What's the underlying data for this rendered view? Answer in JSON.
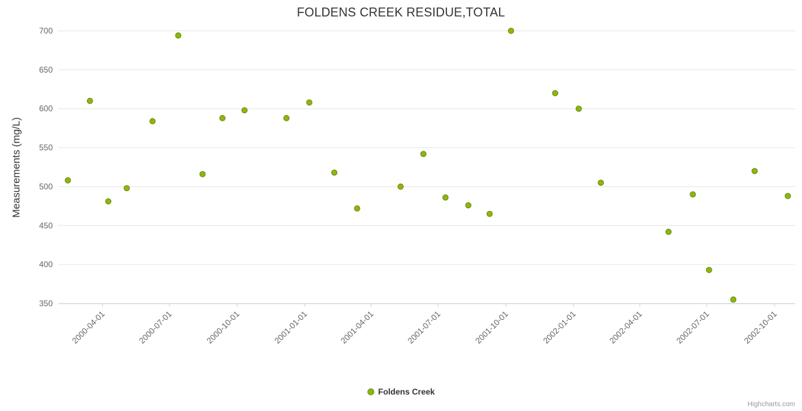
{
  "credits": "Highcharts.com",
  "legend": {
    "label": "Foldens Creek"
  },
  "chart_data": {
    "type": "scatter",
    "title": "FOLDENS CREEK RESIDUE,TOTAL",
    "xlabel": "",
    "ylabel": "Measurements (mg/L)",
    "ylim": [
      350,
      700
    ],
    "y_ticks": [
      350,
      400,
      450,
      500,
      550,
      600,
      650,
      700
    ],
    "x_ticks": [
      "2000-04-01",
      "2000-07-01",
      "2000-10-01",
      "2001-01-01",
      "2001-04-01",
      "2001-07-01",
      "2001-10-01",
      "2002-01-01",
      "2002-04-01",
      "2002-07-01",
      "2002-10-01"
    ],
    "x_range": [
      "2000-02-01",
      "2002-10-29"
    ],
    "grid": "horizontal",
    "legend_position": "bottom-center",
    "colors": {
      "marker_fill": "#8fb512",
      "marker_stroke": "#6d8c0b",
      "gridline": "#e6e6e6",
      "axis_line": "#ccd6eb",
      "tick_label": "#666666",
      "title": "#333333"
    },
    "series": [
      {
        "name": "Foldens Creek",
        "color": "#8fb512",
        "border_color": "#6d8c0b",
        "points": [
          [
            "2000-02-14",
            508
          ],
          [
            "2000-03-15",
            610
          ],
          [
            "2000-04-09",
            481
          ],
          [
            "2000-05-04",
            498
          ],
          [
            "2000-06-08",
            584
          ],
          [
            "2000-07-13",
            694
          ],
          [
            "2000-08-15",
            516
          ],
          [
            "2000-09-11",
            588
          ],
          [
            "2000-10-11",
            598
          ],
          [
            "2000-12-07",
            588
          ],
          [
            "2001-01-07",
            608
          ],
          [
            "2001-02-10",
            518
          ],
          [
            "2001-03-13",
            472
          ],
          [
            "2001-05-11",
            500
          ],
          [
            "2001-06-11",
            542
          ],
          [
            "2001-07-11",
            486
          ],
          [
            "2001-08-11",
            476
          ],
          [
            "2001-09-09",
            465
          ],
          [
            "2001-10-08",
            700
          ],
          [
            "2001-12-07",
            620
          ],
          [
            "2002-01-08",
            600
          ],
          [
            "2002-02-07",
            505
          ],
          [
            "2002-05-10",
            442
          ],
          [
            "2002-06-12",
            490
          ],
          [
            "2002-07-04",
            393
          ],
          [
            "2002-08-06",
            355
          ],
          [
            "2002-09-04",
            520
          ],
          [
            "2002-10-19",
            488
          ]
        ]
      }
    ]
  }
}
